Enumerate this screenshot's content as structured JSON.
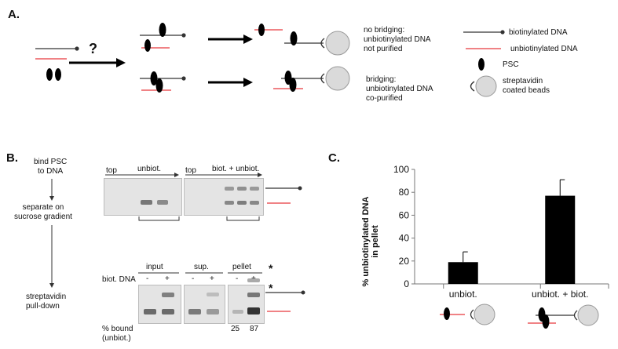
{
  "panelA": {
    "label": "A.",
    "question_mark": "?",
    "outcome_no_bridging": "no bridging:\nunbiotinylated DNA\nnot purified",
    "outcome_bridging": "bridging:\nunbiotinylated DNA\nco-purified",
    "legend": {
      "biotinylated": "biotinylated DNA",
      "unbiotinylated": "unbiotinylated DNA",
      "psc": "PSC",
      "beads": "streptavidin\ncoated beads"
    }
  },
  "panelB": {
    "label": "B.",
    "steps": [
      "bind PSC\nto DNA",
      "separate on\nsucrose gradient",
      "streptavidin\npull-down"
    ],
    "gradient": {
      "top_label": "top",
      "lane1_title": "unbiot.",
      "lane2_title": "biot. + unbiot."
    },
    "pulldown": {
      "headers": [
        "input",
        "sup.",
        "pellet"
      ],
      "row_label": "biot. DNA",
      "signs": [
        "-",
        "+",
        "-",
        "+",
        "-",
        "+"
      ],
      "asterisk": "*",
      "bound_label": "% bound\n(unbiot.)",
      "bound_values": [
        "25",
        "87"
      ]
    }
  },
  "panelC": {
    "label": "C.",
    "chart_data": {
      "type": "bar",
      "categories": [
        "unbiot.",
        "unbiot. + biot."
      ],
      "values": [
        19,
        77
      ],
      "errors": [
        9,
        14
      ],
      "ylabel": "% unbiotinylated DNA\nin pellet",
      "ylim": [
        0,
        100
      ],
      "yticks": [
        0,
        20,
        40,
        60,
        80,
        100
      ],
      "bar_color": "#000000"
    }
  },
  "colors": {
    "red": "#e8383c",
    "bead": "#dadada",
    "line": "#333333"
  }
}
